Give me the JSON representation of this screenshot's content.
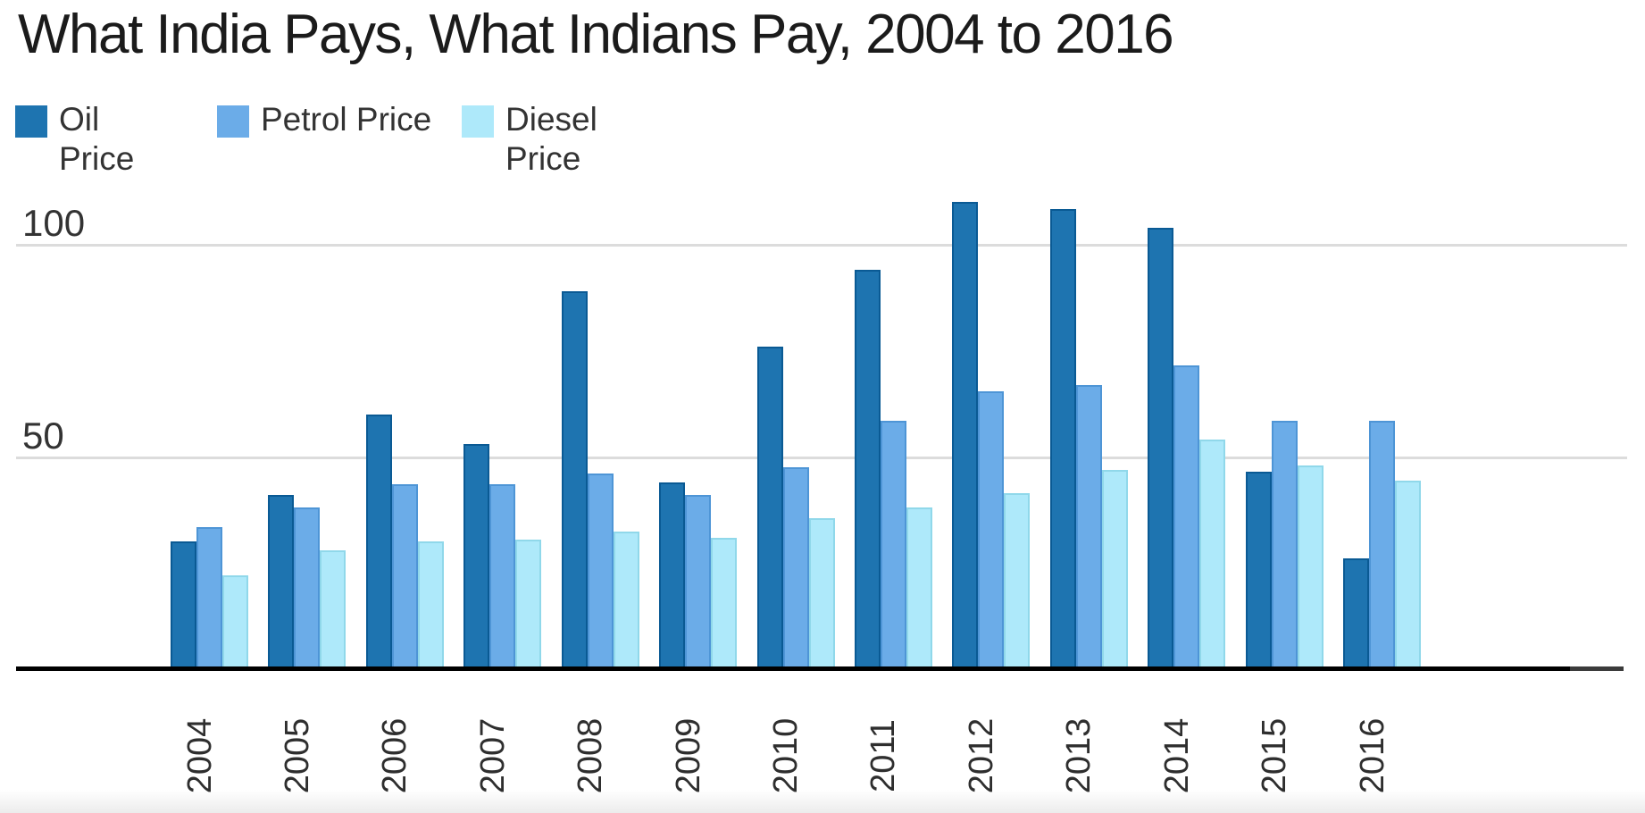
{
  "page": {
    "background": "#ffffff"
  },
  "chart_data": {
    "type": "bar",
    "title": "What India Pays, What Indians Pay, 2004 to 2016",
    "categories": [
      "2004",
      "2005",
      "2006",
      "2007",
      "2008",
      "2009",
      "2010",
      "2011",
      "2012",
      "2013",
      "2014",
      "2015",
      "2016"
    ],
    "series": [
      {
        "name": "Oil Price",
        "color": "#1e74b0",
        "border_color": "#0a5a94",
        "values": [
          30,
          41,
          60,
          53,
          89,
          44,
          76,
          94,
          110,
          108.5,
          104,
          46.5,
          26
        ]
      },
      {
        "name": "Petrol Price",
        "color": "#6bace8",
        "border_color": "#4e95d6",
        "values": [
          33.5,
          38,
          43.5,
          43.5,
          46,
          41,
          47.5,
          58.5,
          65.5,
          67,
          71.5,
          58.5,
          58.5
        ]
      },
      {
        "name": "Diesel Price",
        "color": "#aee9fa",
        "border_color": "#90d8ea",
        "values": [
          22,
          28,
          30,
          30.5,
          32.5,
          31,
          35.5,
          38,
          41.5,
          47,
          54,
          48,
          44.5
        ]
      }
    ],
    "axis": {
      "yticks": [
        100,
        50
      ],
      "ylim": [
        0,
        113
      ],
      "grid": "horizontal",
      "gridline_color": "#dcdcdc",
      "axis_line_color": "#000000",
      "axis_line_end_color": "#3b3b3b",
      "tick_text_color": "#333333",
      "x_label_rotation": -90
    },
    "legend_position": "top-left",
    "xlabel": "",
    "ylabel": ""
  }
}
